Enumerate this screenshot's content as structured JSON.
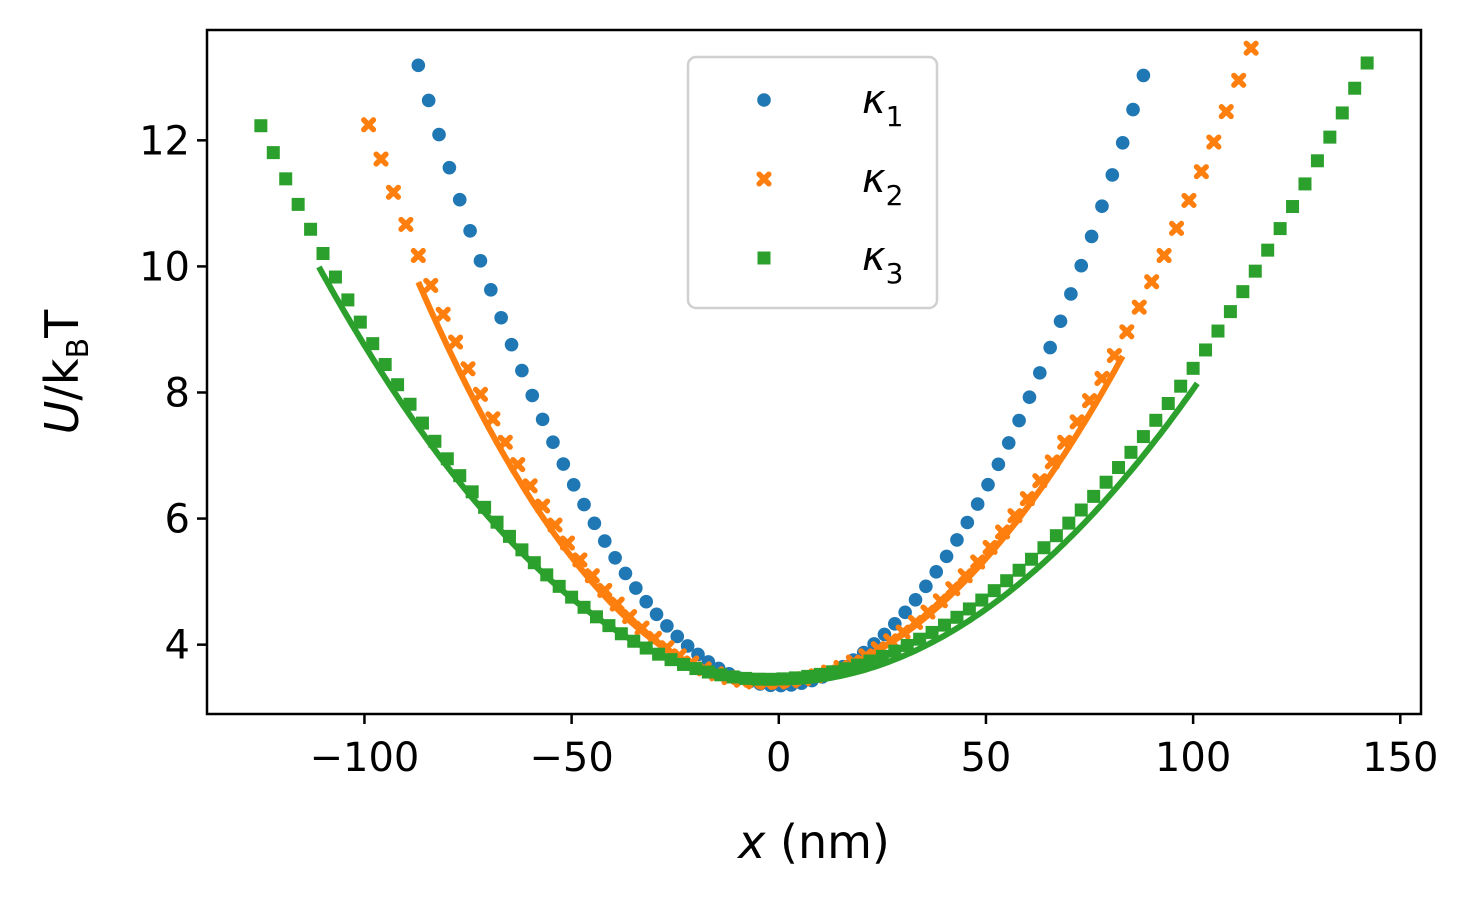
{
  "chart_data": {
    "type": "scatter",
    "title": "",
    "xlabel": "x (nm)",
    "ylabel": "U/kBT",
    "xlabel_parts": {
      "var": "x",
      "unit": " (nm)"
    },
    "ylabel_parts": {
      "var": "U",
      "slash": "/k",
      "sub": "B",
      "tail": "T"
    },
    "xlim": [
      -138,
      155
    ],
    "ylim": [
      2.9,
      13.75
    ],
    "xticks": [
      -100,
      -50,
      0,
      50,
      100,
      150
    ],
    "xtick_labels": [
      "−100",
      "−50",
      "0",
      "50",
      "100",
      "150"
    ],
    "yticks": [
      4,
      6,
      8,
      10,
      12
    ],
    "ytick_labels": [
      "4",
      "6",
      "8",
      "10",
      "12"
    ],
    "legend_position": "upper-center",
    "series": [
      {
        "name": "κ1",
        "symbol": "κ",
        "sub": "1",
        "color": "#1f77b4",
        "marker": "circle",
        "points": {
          "x_start": -87,
          "x_end": 89,
          "x_step": 2.5,
          "vertex_x": 0,
          "vertex_y": 3.35,
          "curvature_left": 0.0013,
          "curvature_right": 0.00125
        }
      },
      {
        "name": "κ2",
        "symbol": "κ",
        "sub": "2",
        "color": "#ff7f0e",
        "marker": "x",
        "points": {
          "x_start": -99,
          "x_end": 115,
          "x_step": 3,
          "vertex_x": -3,
          "vertex_y": 3.4,
          "curvature_left": 0.00096,
          "curvature_right": 0.000735
        },
        "fit": {
          "x_start": -87,
          "x_end": 83,
          "vertex_x": -3,
          "vertex_y": 3.4,
          "curvature_left": 0.0009,
          "curvature_right": 0.0007
        }
      },
      {
        "name": "κ3",
        "symbol": "κ",
        "sub": "3",
        "color": "#2ca02c",
        "marker": "square",
        "points": {
          "x_start": -125,
          "x_end": 142,
          "x_step": 3,
          "vertex_x": -3,
          "vertex_y": 3.45,
          "curvature_left": 0.00059,
          "curvature_right": 0.000465
        },
        "fit": {
          "x_start": -111,
          "x_end": 101,
          "vertex_x": 0,
          "vertex_y": 3.4,
          "curvature_left": 0.000535,
          "curvature_right": 0.000465
        }
      }
    ]
  }
}
